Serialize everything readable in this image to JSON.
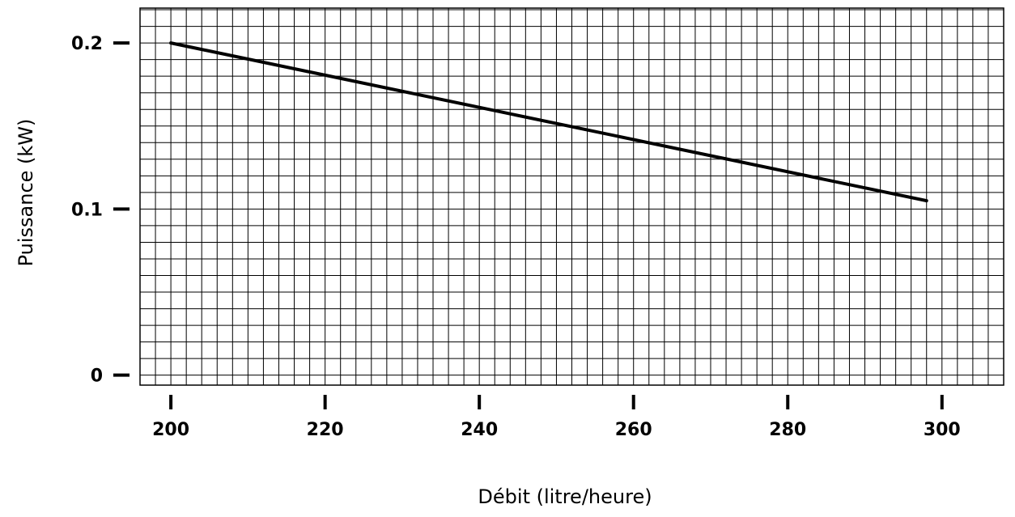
{
  "chart_data": {
    "type": "line",
    "title": "",
    "xlabel": "Débit (litre/heure)",
    "ylabel": "Puissance (kW)",
    "xlim": [
      196,
      308
    ],
    "ylim": [
      -0.006,
      0.221
    ],
    "x_ticks": [
      200,
      220,
      240,
      260,
      280,
      300
    ],
    "x_tick_labels": [
      "200",
      "220",
      "240",
      "260",
      "280",
      "300"
    ],
    "y_ticks": [
      0,
      0.1,
      0.2
    ],
    "y_tick_labels": [
      "0",
      "0.1",
      "0.2"
    ],
    "grid": true,
    "grid_x_step": 2,
    "grid_y_step": 0.01,
    "series": [
      {
        "x": [
          200,
          298
        ],
        "y": [
          0.2,
          0.105
        ]
      }
    ]
  },
  "colors": {
    "background": "#ffffff",
    "ink": "#000000"
  }
}
